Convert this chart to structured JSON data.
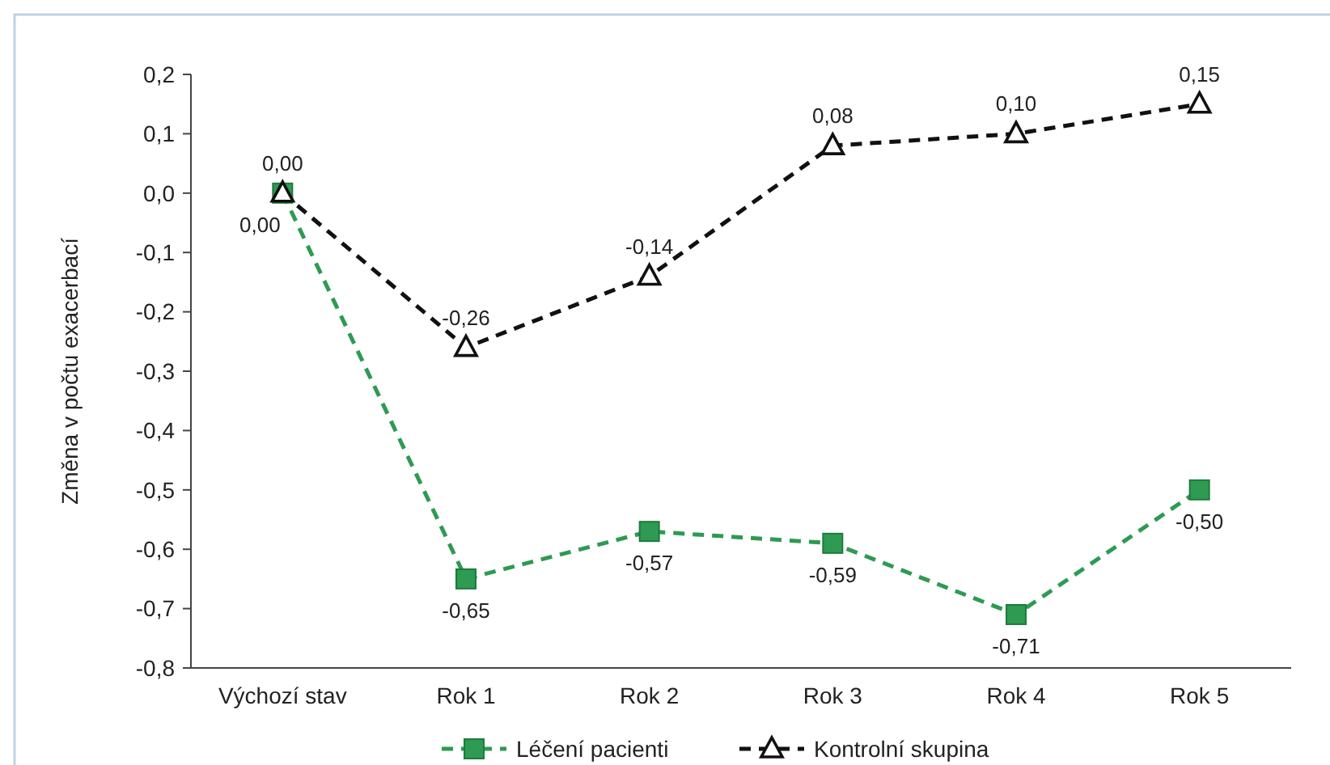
{
  "chart_data": {
    "type": "line",
    "ylabel": "Změna v počtu exacerbací",
    "categories": [
      "Výchozí stav",
      "Rok 1",
      "Rok 2",
      "Rok 3",
      "Rok 4",
      "Rok 5"
    ],
    "ylim": [
      -0.8,
      0.2
    ],
    "yticks": [
      {
        "value": -0.8,
        "label": "-0,8"
      },
      {
        "value": -0.7,
        "label": "-0,7"
      },
      {
        "value": -0.6,
        "label": "-0,6"
      },
      {
        "value": -0.5,
        "label": "-0,5"
      },
      {
        "value": -0.4,
        "label": "-0,4"
      },
      {
        "value": -0.3,
        "label": "-0,3"
      },
      {
        "value": -0.2,
        "label": "-0,2"
      },
      {
        "value": -0.1,
        "label": "-0,1"
      },
      {
        "value": 0,
        "label": "0,0"
      },
      {
        "value": 0.1,
        "label": "0,1"
      },
      {
        "value": 0.2,
        "label": "0,2"
      }
    ],
    "series": [
      {
        "name": "Léčení pacienti",
        "color": "#2e9a52",
        "marker": "square",
        "line_style": "dashed",
        "values": [
          0,
          -0.65,
          -0.57,
          -0.59,
          -0.71,
          -0.5
        ],
        "value_labels": [
          "0,00",
          "-0,65",
          "-0,57",
          "-0,59",
          "-0,71",
          "-0,50"
        ]
      },
      {
        "name": "Kontrolní skupina",
        "color": "#111111",
        "marker": "triangle",
        "line_style": "dashed",
        "values": [
          0,
          -0.26,
          -0.14,
          0.08,
          0.1,
          0.15
        ],
        "value_labels": [
          "0,00",
          "-0,26",
          "-0,14",
          "0,08",
          "0,10",
          "0,15"
        ]
      }
    ],
    "grid": false,
    "legend": "bottom"
  }
}
